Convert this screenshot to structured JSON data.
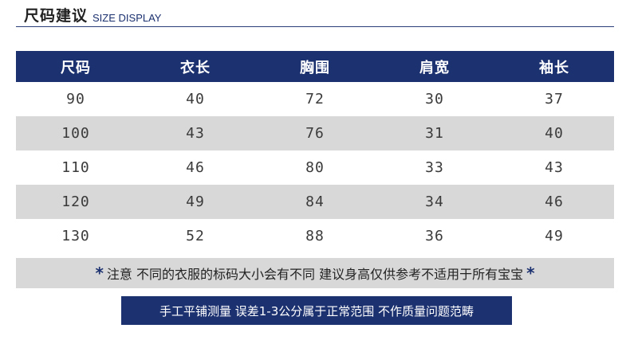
{
  "header": {
    "title_cn": "尺码建议",
    "title_en": "SIZE DISPLAY"
  },
  "table": {
    "columns": [
      "尺码",
      "衣长",
      "胸围",
      "肩宽",
      "袖长"
    ],
    "rows": [
      [
        "90",
        "40",
        "72",
        "30",
        "37"
      ],
      [
        "100",
        "43",
        "76",
        "31",
        "40"
      ],
      [
        "110",
        "46",
        "80",
        "33",
        "43"
      ],
      [
        "120",
        "49",
        "84",
        "34",
        "46"
      ],
      [
        "130",
        "52",
        "88",
        "36",
        "49"
      ]
    ]
  },
  "notice": {
    "star_left": "*",
    "text": "注意  不同的衣服的标码大小会有不同 建议身高仅供参考不适用于所有宝宝",
    "star_right": "*"
  },
  "footer": {
    "text": "手工平铺测量 误差1-3公分属于正常范围 不作质量问题范畴"
  },
  "colors": {
    "header_bg": "#1c3170",
    "shaded_row": "#d8d8d8",
    "text": "#3a3a3a"
  }
}
